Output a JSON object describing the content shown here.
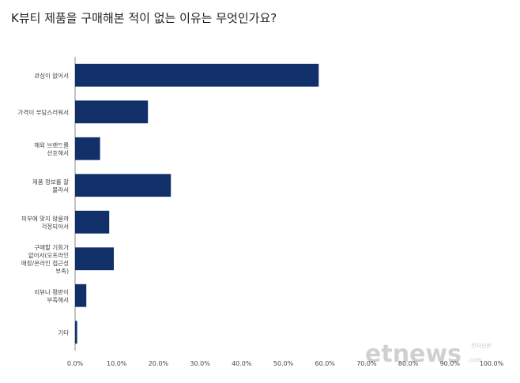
{
  "title": "K뷰티 제품을 구매해본 적이 없는 이유는 무엇인가요?",
  "watermark": {
    "text": "etnews",
    "suffix": ".com",
    "tag": "전자신문"
  },
  "chart_data": {
    "type": "bar",
    "orientation": "horizontal",
    "title": "K뷰티 제품을 구매해본 적이 없는 이유는 무엇인가요?",
    "categories": [
      [
        "관심이 없어서"
      ],
      [
        "가격이 부담스러워서"
      ],
      [
        "해외 브랜드를",
        "선호해서"
      ],
      [
        "제품 정보를 잘",
        "몰라서"
      ],
      [
        "피부에 맞지 않을까",
        "걱정되어서"
      ],
      [
        "구매할 기회가",
        "없어서(오프라인",
        "매장/온라인 접근성",
        "부족)"
      ],
      [
        "리뷰나 평판이",
        "부족해서"
      ],
      [
        "기타"
      ]
    ],
    "values": [
      58.5,
      17.5,
      6.0,
      23.0,
      8.2,
      9.3,
      2.7,
      0.5
    ],
    "xlim": [
      0,
      100
    ],
    "xticks": [
      "0.0%",
      "10.0%",
      "20.0%",
      "30.0%",
      "40.0%",
      "50.0%",
      "60.0%",
      "70.0%",
      "80.0%",
      "90.0%",
      "100.0%"
    ],
    "bar_color": "#112f69",
    "grid": false
  }
}
